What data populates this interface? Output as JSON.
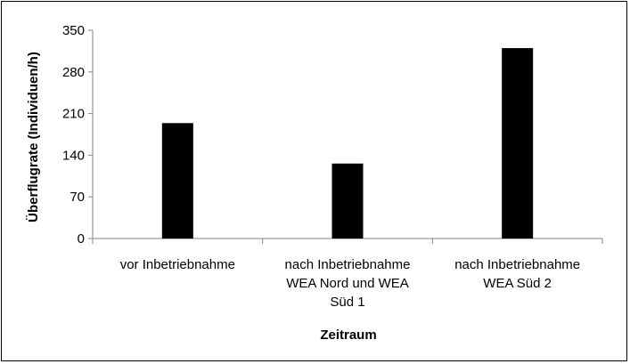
{
  "chart_data": {
    "type": "bar",
    "categories": [
      [
        "vor Inbetriebnahme"
      ],
      [
        "nach Inbetriebnahme",
        "WEA Nord und WEA",
        "Süd 1"
      ],
      [
        "nach Inbetriebnahme",
        "WEA Süd 2"
      ]
    ],
    "values": [
      194,
      126,
      320
    ],
    "xlabel": "Zeitraum",
    "ylabel": "Überflugrate (Individuen/h)",
    "ylim": [
      0,
      350
    ],
    "yticks": [
      0,
      70,
      140,
      210,
      280,
      350
    ],
    "grid": false,
    "legend": "none",
    "bar_color": "#000000"
  }
}
